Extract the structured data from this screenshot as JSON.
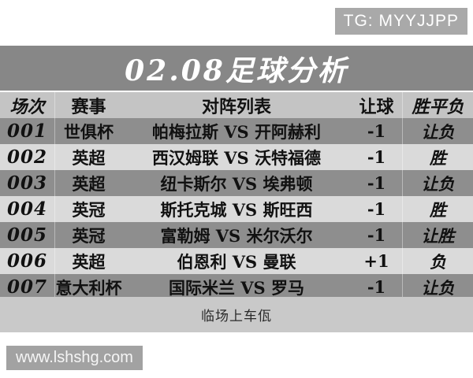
{
  "badges": {
    "tg": "TG: MYYJJPP",
    "site": "www.lshshg.com"
  },
  "title": "02.08足球分析",
  "table": {
    "headers": [
      "场次",
      "赛事",
      "对阵列表",
      "让球",
      "胜平负"
    ],
    "rows": [
      {
        "no": "001",
        "league": "世俱杯",
        "match": "帕梅拉斯 VS 开阿赫利",
        "handicap": "-1",
        "pick": "让负"
      },
      {
        "no": "002",
        "league": "英超",
        "match": "西汉姆联 VS 沃特福德",
        "handicap": "-1",
        "pick": "胜"
      },
      {
        "no": "003",
        "league": "英超",
        "match": "纽卡斯尔 VS 埃弗顿",
        "handicap": "-1",
        "pick": "让负"
      },
      {
        "no": "004",
        "league": "英冠",
        "match": "斯托克城 VS 斯旺西",
        "handicap": "-1",
        "pick": "胜"
      },
      {
        "no": "005",
        "league": "英冠",
        "match": "富勒姆 VS 米尔沃尔",
        "handicap": "-1",
        "pick": "让胜"
      },
      {
        "no": "006",
        "league": "英超",
        "match": "伯恩利 VS 曼联",
        "handicap": "+1",
        "pick": "负"
      },
      {
        "no": "007",
        "league": "意大利杯",
        "match": "国际米兰 VS 罗马",
        "handicap": "-1",
        "pick": "让负"
      }
    ]
  },
  "footer": {
    "note": "临场上车佤"
  },
  "colors": {
    "title_bar": "#878787",
    "header_row": "#c4c4c4",
    "row_dark": "#8e8e8e",
    "row_light": "#dadada",
    "footer_strip": "#c9c9c9",
    "tg_badge_bg": "#a9a9a9",
    "site_badge_bg": "#a2a2a2"
  }
}
